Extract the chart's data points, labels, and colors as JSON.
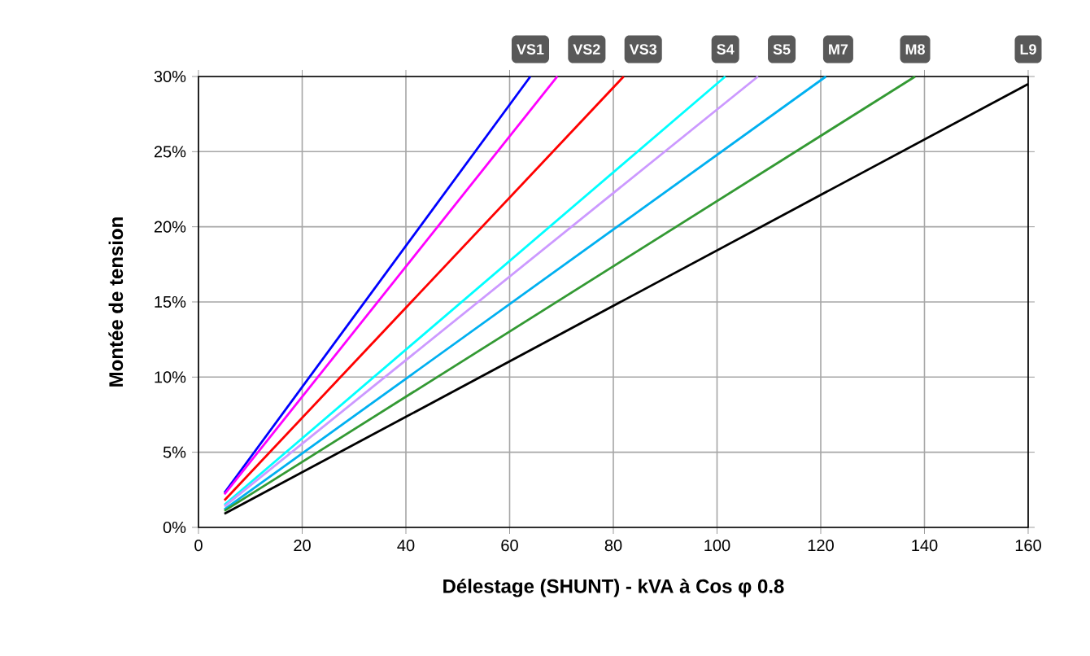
{
  "chart_data": {
    "type": "line",
    "xlabel": "Délestage (SHUNT) - kVA à Cos φ 0.8",
    "ylabel": "Montée de tension",
    "xlim": [
      0,
      160
    ],
    "xticks": [
      0,
      20,
      40,
      60,
      80,
      100,
      120,
      140,
      160
    ],
    "ylim": [
      0,
      30
    ],
    "yticks": [
      {
        "value": 0,
        "label": "0%"
      },
      {
        "value": 5,
        "label": "5%"
      },
      {
        "value": 10,
        "label": "10%"
      },
      {
        "value": 15,
        "label": "15%"
      },
      {
        "value": 20,
        "label": "20%"
      },
      {
        "value": 25,
        "label": "25%"
      },
      {
        "value": 30,
        "label": "30%"
      }
    ],
    "grid": true,
    "series": [
      {
        "name": "VS1",
        "color": "#0000ff",
        "x": [
          5,
          64
        ],
        "values": [
          2.3,
          30
        ]
      },
      {
        "name": "VS2",
        "color": "#ff00ff",
        "x": [
          5,
          69.2
        ],
        "values": [
          2.2,
          30
        ]
      },
      {
        "name": "VS3",
        "color": "#ff0000",
        "x": [
          5,
          82
        ],
        "values": [
          1.8,
          30
        ]
      },
      {
        "name": "S4",
        "color": "#00ffff",
        "x": [
          5,
          101.6
        ],
        "values": [
          1.5,
          30
        ]
      },
      {
        "name": "S5",
        "color": "#cc99ff",
        "x": [
          5,
          107.9
        ],
        "values": [
          1.4,
          30
        ]
      },
      {
        "name": "M7",
        "color": "#00b0f0",
        "x": [
          5,
          121
        ],
        "values": [
          1.2,
          30
        ]
      },
      {
        "name": "M8",
        "color": "#339933",
        "x": [
          5,
          138.2
        ],
        "values": [
          1.1,
          30
        ]
      },
      {
        "name": "L9",
        "color": "#000000",
        "x": [
          5,
          160
        ],
        "values": [
          0.9,
          29.5
        ]
      }
    ]
  }
}
